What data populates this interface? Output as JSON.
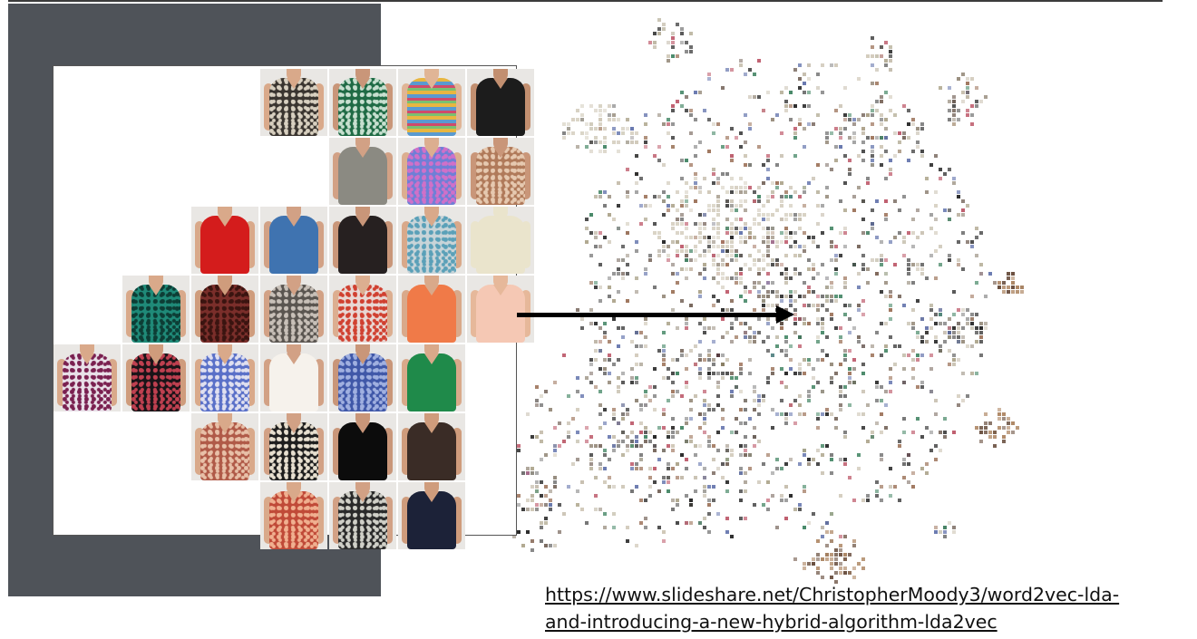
{
  "slide": {
    "link_text": "https://www.slideshare.net/ChristopherMoody3/word2vec-lda-\nand-introducing-a-new-hybrid-algorithm-lda2vec"
  },
  "colors": {
    "dark_panel": "#4f5359",
    "arrow": "#000000",
    "link": "#111111"
  },
  "grid_tiles": [
    {
      "row": 0,
      "col": 3,
      "shirt": "#3a3530",
      "pattern": "#d8d0c0",
      "skin": "#d9a98a",
      "kind": "print",
      "label": "black floral blouse"
    },
    {
      "row": 0,
      "col": 4,
      "shirt": "#1f6b45",
      "pattern": "#c8e0d0",
      "skin": "#c99679",
      "kind": "print",
      "label": "green print tank"
    },
    {
      "row": 0,
      "col": 5,
      "shirt": "#e8b640",
      "pattern": "#5a9ad0",
      "skin": "#e0b596",
      "kind": "stripe",
      "label": "striped tank"
    },
    {
      "row": 0,
      "col": 6,
      "shirt": "#1c1c1c",
      "pattern": "#1c1c1c",
      "skin": "#c28f70",
      "kind": "solid",
      "label": "black top"
    },
    {
      "row": 1,
      "col": 4,
      "shirt": "#8b8a82",
      "pattern": "#8b8a82",
      "skin": "#d2a185",
      "kind": "solid",
      "label": "grey tank"
    },
    {
      "row": 1,
      "col": 5,
      "shirt": "#6f7fd6",
      "pattern": "#d070c8",
      "skin": "#dcae90",
      "kind": "print",
      "label": "purple print top"
    },
    {
      "row": 1,
      "col": 6,
      "shirt": "#b07a5a",
      "pattern": "#e6c9b0",
      "skin": "#c99679",
      "kind": "print",
      "label": "animal print blouse"
    },
    {
      "row": 2,
      "col": 2,
      "shirt": "#d41c1c",
      "pattern": "#d41c1c",
      "skin": "#d9a98a",
      "kind": "solid",
      "label": "red wrap top"
    },
    {
      "row": 2,
      "col": 3,
      "shirt": "#3f73b0",
      "pattern": "#3f73b0",
      "skin": "#d2a185",
      "kind": "solid",
      "label": "blue tee"
    },
    {
      "row": 2,
      "col": 4,
      "shirt": "#262020",
      "pattern": "#262020",
      "skin": "#c99679",
      "kind": "solid",
      "label": "black tank"
    },
    {
      "row": 2,
      "col": 5,
      "shirt": "#c8d4d8",
      "pattern": "#5aa0b8",
      "skin": "#d9a98a",
      "kind": "print",
      "label": "blue white print tank"
    },
    {
      "row": 2,
      "col": 6,
      "shirt": "#eae4cc",
      "pattern": "#eae4cc",
      "skin": "#eae4cc",
      "kind": "solid",
      "label": "cream blouse"
    },
    {
      "row": 3,
      "col": 1,
      "shirt": "#1f8a78",
      "pattern": "#0d3d35",
      "skin": "#d9a98a",
      "kind": "print",
      "label": "teal print blouse"
    },
    {
      "row": 3,
      "col": 2,
      "shirt": "#7a2e2a",
      "pattern": "#3a1410",
      "skin": "#cf9c7c",
      "kind": "print",
      "label": "burgundy print tank"
    },
    {
      "row": 3,
      "col": 3,
      "shirt": "#5a5550",
      "pattern": "#c8c0b8",
      "skin": "#d2a185",
      "kind": "print",
      "label": "grey print blouse"
    },
    {
      "row": 3,
      "col": 4,
      "shirt": "#e8d8d4",
      "pattern": "#d04030",
      "skin": "#dcae90",
      "kind": "print",
      "label": "white print tank"
    },
    {
      "row": 3,
      "col": 5,
      "shirt": "#f07a48",
      "pattern": "#f07a48",
      "skin": "#d9a98a",
      "kind": "solid",
      "label": "orange blouse"
    },
    {
      "row": 3,
      "col": 6,
      "shirt": "#f5c8b4",
      "pattern": "#f5c8b4",
      "skin": "#e6b89a",
      "kind": "solid",
      "label": "peach blouse"
    },
    {
      "row": 4,
      "col": 0,
      "shirt": "#e8e0e8",
      "pattern": "#7a2050",
      "skin": "#d9a98a",
      "kind": "print",
      "label": "pink print top"
    },
    {
      "row": 4,
      "col": 1,
      "shirt": "#1a1418",
      "pattern": "#c04050",
      "skin": "#cf9c7c",
      "kind": "print",
      "label": "black medallion print"
    },
    {
      "row": 4,
      "col": 2,
      "shirt": "#5a70c8",
      "pattern": "#e0e0f0",
      "skin": "#d9a98a",
      "kind": "print",
      "label": "blue print blouse"
    },
    {
      "row": 4,
      "col": 3,
      "shirt": "#f6f2ec",
      "pattern": "#f6f2ec",
      "skin": "#d2a185",
      "kind": "solid",
      "label": "white blouse"
    },
    {
      "row": 4,
      "col": 4,
      "shirt": "#4058a8",
      "pattern": "#a0b0e0",
      "skin": "#c99679",
      "kind": "print",
      "label": "blue patterned top"
    },
    {
      "row": 4,
      "col": 5,
      "shirt": "#1f8a4a",
      "pattern": "#1a1a1a",
      "skin": "#d9a98a",
      "kind": "solid",
      "label": "green top"
    },
    {
      "row": 5,
      "col": 2,
      "shirt": "#b05a48",
      "pattern": "#e8c0a8",
      "skin": "#d9a98a",
      "kind": "print",
      "label": "rust print blouse"
    },
    {
      "row": 5,
      "col": 3,
      "shirt": "#1e1e1e",
      "pattern": "#e8e0d0",
      "skin": "#d2a185",
      "kind": "print",
      "label": "black dot top"
    },
    {
      "row": 5,
      "col": 4,
      "shirt": "#0c0c0c",
      "pattern": "#3a6ad0",
      "skin": "#c99679",
      "kind": "solid",
      "label": "black blue top"
    },
    {
      "row": 5,
      "col": 5,
      "shirt": "#3a2c26",
      "pattern": "#8a7060",
      "skin": "#cf9c7c",
      "kind": "solid",
      "label": "brown tank"
    },
    {
      "row": 6,
      "col": 3,
      "shirt": "#c04a38",
      "pattern": "#f0b090",
      "skin": "#d9a98a",
      "kind": "print",
      "label": "red print blouse"
    },
    {
      "row": 6,
      "col": 4,
      "shirt": "#2a2a2a",
      "pattern": "#d0d0c8",
      "skin": "#d2a185",
      "kind": "print",
      "label": "black white print top"
    },
    {
      "row": 6,
      "col": 5,
      "shirt": "#1c2238",
      "pattern": "#1c2238",
      "skin": "#cf9c7c",
      "kind": "solid",
      "label": "navy tank"
    }
  ]
}
